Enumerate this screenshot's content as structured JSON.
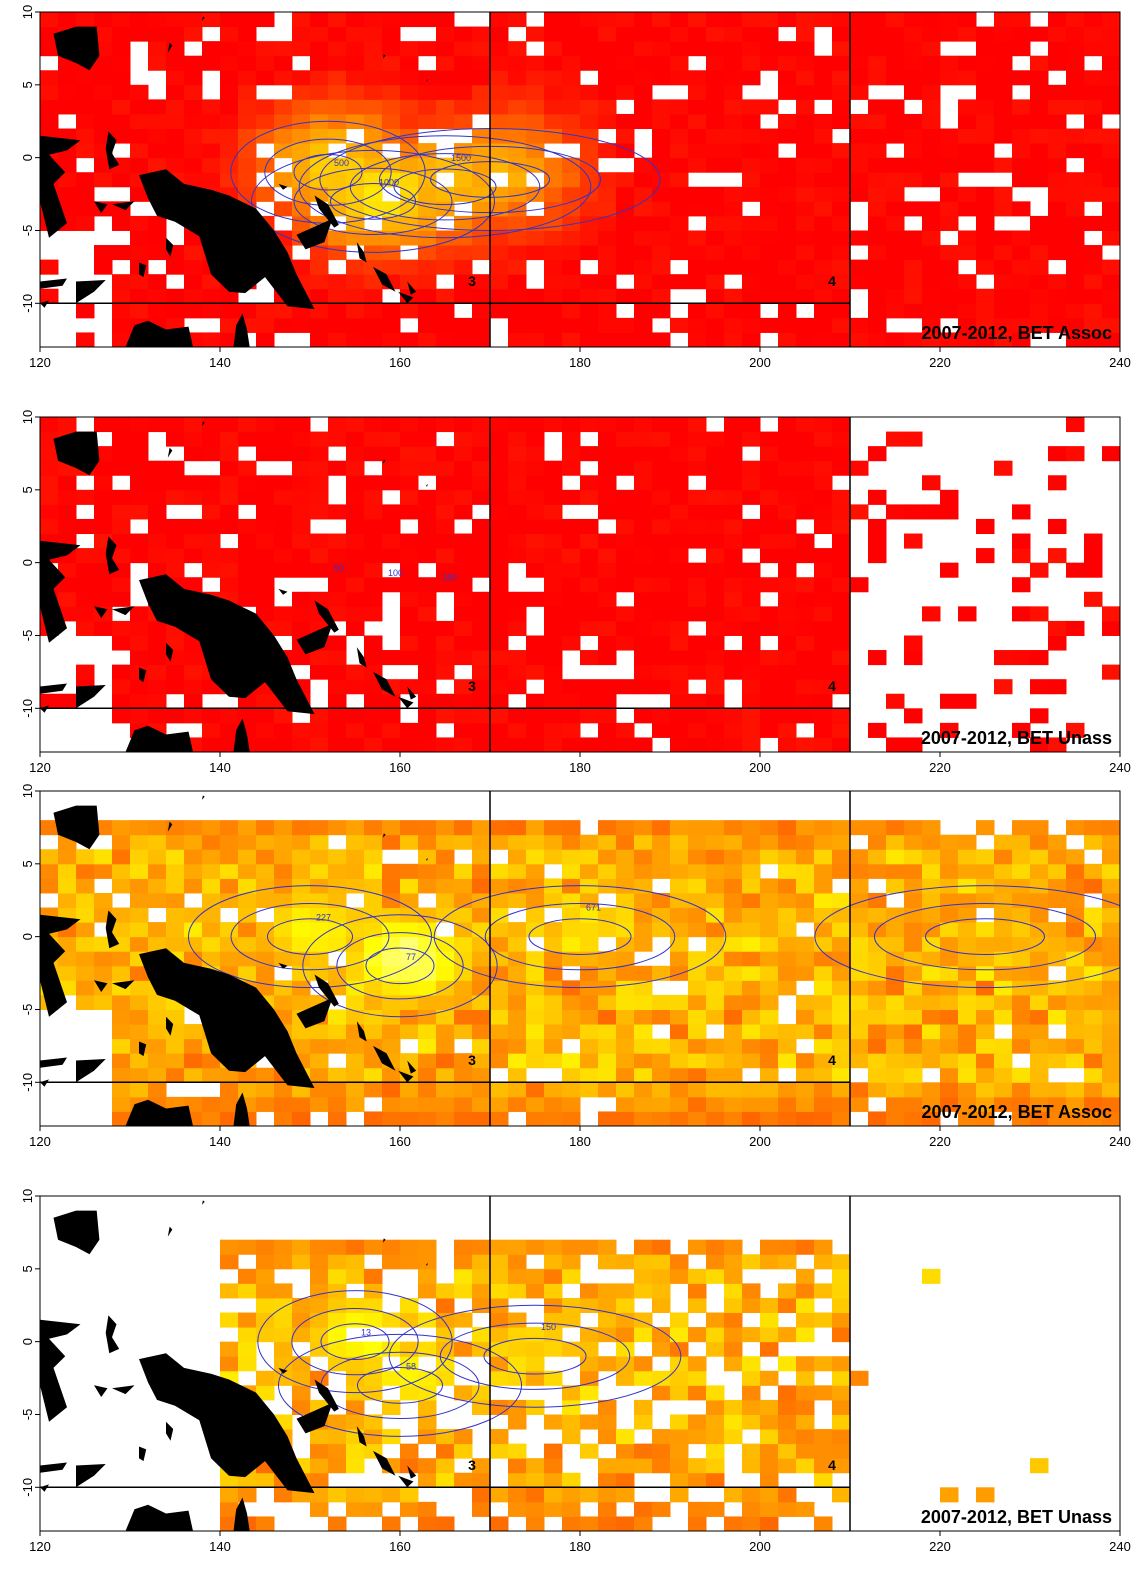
{
  "figure": {
    "x_ticks": [
      120,
      140,
      160,
      180,
      200,
      220,
      240
    ],
    "y_ticks": [
      10,
      5,
      0,
      -5,
      -10
    ],
    "x_range": [
      120,
      240
    ],
    "y_range": [
      -13,
      10
    ],
    "boundaries": {
      "vertical_lon": [
        170,
        210
      ],
      "horizontal_lat": -10,
      "horizontal_lon_range": [
        120,
        210
      ]
    },
    "region_labels": [
      {
        "text": "3",
        "lon": 168,
        "lat": -8.8
      },
      {
        "text": "4",
        "lon": 208,
        "lat": -8.8
      }
    ],
    "colors": {
      "land": "#000000",
      "contour": "#3333cc",
      "grid_line": "#000000",
      "low": "#ff0000",
      "mid": "#ff8c00",
      "high": "#ffff00",
      "peak": "#ffffcc"
    }
  },
  "panels": [
    {
      "id": "p1",
      "label": "2007-2012, BET Assoc",
      "contour_labels": [
        "500",
        "1000",
        "1500"
      ],
      "top_y_tick_text": "10",
      "peaks": [
        {
          "lon": 152,
          "lat": -1,
          "value": 0.55
        },
        {
          "lon": 157,
          "lat": -3,
          "value": 0.65
        },
        {
          "lon": 165,
          "lat": -2,
          "value": 0.5
        },
        {
          "lon": 170,
          "lat": -1.5,
          "value": 0.45
        }
      ],
      "coverage": {
        "lon_min": 120,
        "lon_max": 240,
        "lat_min": -13,
        "lat_max": 10,
        "density": 0.88
      }
    },
    {
      "id": "p2",
      "label": "2007-2012, BET Unass",
      "contour_labels": [
        "50",
        "100",
        "150"
      ],
      "top_y_tick_text": "10",
      "peaks": [],
      "coverage": {
        "lon_min": 120,
        "lon_max": 210,
        "lat_min": -13,
        "lat_max": 10,
        "density": 0.85,
        "sparse_east": 0.2
      }
    },
    {
      "id": "p3",
      "label": "2007-2012, BET Assoc",
      "contour_labels": [
        "77",
        "227",
        "671"
      ],
      "top_y_tick_text": "10",
      "peaks": [
        {
          "lon": 160,
          "lat": -2,
          "value": 0.9
        },
        {
          "lon": 150,
          "lat": 0,
          "value": 0.7
        },
        {
          "lon": 180,
          "lat": 0,
          "value": 0.6
        },
        {
          "lon": 225,
          "lat": 0,
          "value": 0.5
        }
      ],
      "coverage": {
        "lon_min": 120,
        "lon_max": 240,
        "lat_min": -13,
        "lat_max": 8,
        "density": 0.92
      }
    },
    {
      "id": "p4",
      "label": "2007-2012, BET Unass",
      "contour_labels": [
        "13",
        "58",
        "150"
      ],
      "top_y_tick_text": "10",
      "peaks": [
        {
          "lon": 155,
          "lat": 0,
          "value": 0.75
        },
        {
          "lon": 160,
          "lat": -3,
          "value": 0.7
        },
        {
          "lon": 175,
          "lat": -1,
          "value": 0.55
        }
      ],
      "coverage": {
        "lon_min": 140,
        "lon_max": 210,
        "lat_min": -13,
        "lat_max": 7,
        "density": 0.7,
        "sparse_east": 0.03
      }
    }
  ]
}
